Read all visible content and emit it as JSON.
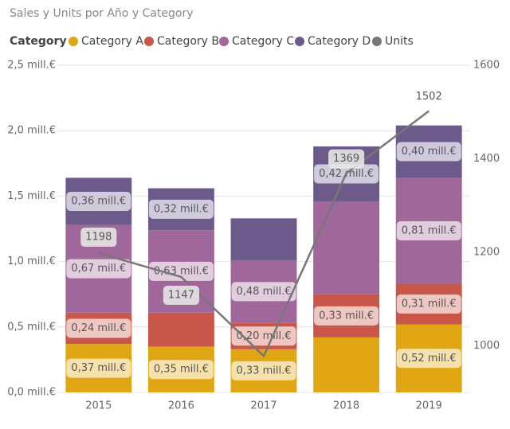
{
  "chart_data": {
    "type": "stacked-bar-line",
    "title": "Sales y Units por Año y Category",
    "legend_title": "Category",
    "categories": [
      "2015",
      "2016",
      "2017",
      "2018",
      "2019"
    ],
    "series": [
      {
        "name": "Category A",
        "color": "#E1A614",
        "values": [
          0.37,
          0.35,
          0.33,
          0.42,
          0.52
        ],
        "value_labels": [
          "0,37 mill.€",
          "0,35 mill.€",
          "0,33 mill.€",
          null,
          "0,52 mill.€"
        ]
      },
      {
        "name": "Category B",
        "color": "#C8574A",
        "values": [
          0.24,
          0.26,
          0.2,
          0.33,
          0.31
        ],
        "value_labels": [
          "0,24 mill.€",
          null,
          "0,20 mill.€",
          "0,33 mill.€",
          "0,31 mill.€"
        ]
      },
      {
        "name": "Category C",
        "color": "#A0679A",
        "values": [
          0.67,
          0.63,
          0.48,
          0.71,
          0.81
        ],
        "value_labels": [
          "0,67 mill.€",
          "0,63 mill.€",
          "0,48 mill.€",
          null,
          "0,81 mill.€"
        ]
      },
      {
        "name": "Category D",
        "color": "#6B5A8A",
        "values": [
          0.36,
          0.32,
          0.32,
          0.42,
          0.4
        ],
        "value_labels": [
          "0,36 mill.€",
          "0,32 mill.€",
          null,
          "0,42 mill.€",
          "0,40 mill.€"
        ]
      },
      {
        "name": "Units",
        "color": "#777777",
        "type": "line",
        "axis": "y2",
        "values": [
          1198,
          1147,
          978,
          1369,
          1502
        ],
        "value_labels": [
          "1198",
          "1147",
          null,
          "1369",
          "1502"
        ]
      }
    ],
    "ylim": [
      0,
      2.5
    ],
    "yticks": [
      {
        "value": 0,
        "label": "0,0 mill.€"
      },
      {
        "value": 0.5,
        "label": "0,5 mill.€"
      },
      {
        "value": 1.0,
        "label": "1,0 mill.€"
      },
      {
        "value": 1.5,
        "label": "1,5 mill.€"
      },
      {
        "value": 2.0,
        "label": "2,0 mill.€"
      },
      {
        "value": 2.5,
        "label": "2,5 mill.€"
      }
    ],
    "y2lim": [
      900,
      1600
    ],
    "y2ticks": [
      1000,
      1200,
      1400,
      1600
    ],
    "grid": true
  }
}
